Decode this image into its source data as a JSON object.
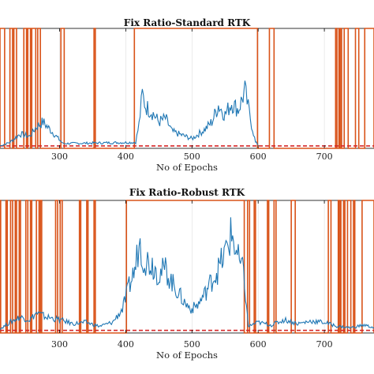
{
  "chart_data": [
    {
      "type": "line",
      "title": "Fix Ratio-Standard RTK",
      "xlabel": "No of Epochs",
      "ylabel": "",
      "xlim": [
        210,
        775
      ],
      "ylim": [
        0,
        1
      ],
      "x_ticks": [
        "300",
        "400",
        "500",
        "600",
        "700"
      ],
      "grid": true,
      "colors": {
        "signal": "#1f77b4",
        "fix": "#d95319",
        "threshold": "#d62728"
      },
      "threshold": 0.02,
      "fix_intervals": [
        [
          210,
          217
        ],
        [
          225,
          229
        ],
        [
          231,
          235
        ],
        [
          246,
          250
        ],
        [
          252,
          256
        ],
        [
          258,
          264
        ],
        [
          267,
          271
        ],
        [
          302,
          307
        ],
        [
          352,
          354
        ],
        [
          413,
          599
        ],
        [
          617,
          624
        ],
        [
          717,
          719
        ],
        [
          722,
          723
        ],
        [
          725,
          726
        ],
        [
          730,
          736
        ],
        [
          747,
          752
        ],
        [
          761,
          775
        ]
      ],
      "series_points": [
        [
          210,
          0.02
        ],
        [
          225,
          0.05
        ],
        [
          240,
          0.12
        ],
        [
          255,
          0.1
        ],
        [
          265,
          0.18
        ],
        [
          275,
          0.22
        ],
        [
          285,
          0.16
        ],
        [
          295,
          0.1
        ],
        [
          305,
          0.04
        ],
        [
          415,
          0.05
        ],
        [
          420,
          0.2
        ],
        [
          425,
          0.45
        ],
        [
          430,
          0.35
        ],
        [
          440,
          0.3
        ],
        [
          450,
          0.22
        ],
        [
          460,
          0.25
        ],
        [
          470,
          0.14
        ],
        [
          480,
          0.12
        ],
        [
          490,
          0.1
        ],
        [
          500,
          0.08
        ],
        [
          510,
          0.12
        ],
        [
          520,
          0.16
        ],
        [
          530,
          0.22
        ],
        [
          540,
          0.36
        ],
        [
          550,
          0.28
        ],
        [
          560,
          0.38
        ],
        [
          570,
          0.32
        ],
        [
          580,
          0.48
        ],
        [
          585,
          0.34
        ],
        [
          590,
          0.2
        ],
        [
          596,
          0.05
        ],
        [
          600,
          0.03
        ]
      ]
    },
    {
      "type": "line",
      "title": "Fix Ratio-Robust RTK",
      "xlabel": "No of Epochs",
      "ylabel": "",
      "xlim": [
        210,
        775
      ],
      "ylim": [
        0,
        1
      ],
      "x_ticks": [
        "300",
        "400",
        "500",
        "600",
        "700"
      ],
      "grid": true,
      "colors": {
        "signal": "#1f77b4",
        "fix": "#d95319",
        "threshold": "#d62728"
      },
      "threshold": 0.02,
      "fix_intervals": [
        [
          210,
          211
        ],
        [
          219,
          221
        ],
        [
          226,
          229
        ],
        [
          233,
          235
        ],
        [
          239,
          241
        ],
        [
          249,
          252
        ],
        [
          256,
          258
        ],
        [
          265,
          269
        ],
        [
          271,
          273
        ],
        [
          294,
          297
        ],
        [
          301,
          304
        ],
        [
          330,
          332
        ],
        [
          341,
          343
        ],
        [
          352,
          354
        ],
        [
          401,
          579
        ],
        [
          584,
          587
        ],
        [
          594,
          596
        ],
        [
          614,
          616
        ],
        [
          624,
          627
        ],
        [
          650,
          656
        ],
        [
          706,
          710
        ],
        [
          721,
          722
        ],
        [
          724,
          725
        ],
        [
          729,
          731
        ],
        [
          735,
          740
        ],
        [
          744,
          746
        ],
        [
          757,
          775
        ]
      ],
      "series_points": [
        [
          210,
          0.03
        ],
        [
          225,
          0.08
        ],
        [
          240,
          0.12
        ],
        [
          255,
          0.1
        ],
        [
          265,
          0.15
        ],
        [
          280,
          0.12
        ],
        [
          300,
          0.1
        ],
        [
          320,
          0.07
        ],
        [
          340,
          0.08
        ],
        [
          360,
          0.05
        ],
        [
          380,
          0.08
        ],
        [
          395,
          0.18
        ],
        [
          405,
          0.35
        ],
        [
          415,
          0.5
        ],
        [
          420,
          0.7
        ],
        [
          425,
          0.6
        ],
        [
          430,
          0.55
        ],
        [
          440,
          0.52
        ],
        [
          450,
          0.45
        ],
        [
          460,
          0.48
        ],
        [
          470,
          0.38
        ],
        [
          480,
          0.3
        ],
        [
          490,
          0.22
        ],
        [
          500,
          0.18
        ],
        [
          510,
          0.22
        ],
        [
          520,
          0.3
        ],
        [
          530,
          0.4
        ],
        [
          540,
          0.48
        ],
        [
          550,
          0.6
        ],
        [
          560,
          0.75
        ],
        [
          570,
          0.55
        ],
        [
          578,
          0.45
        ],
        [
          585,
          0.05
        ],
        [
          600,
          0.08
        ],
        [
          620,
          0.06
        ],
        [
          640,
          0.1
        ],
        [
          660,
          0.07
        ],
        [
          680,
          0.09
        ],
        [
          700,
          0.08
        ],
        [
          720,
          0.05
        ],
        [
          740,
          0.04
        ],
        [
          760,
          0.06
        ],
        [
          775,
          0.04
        ]
      ]
    }
  ]
}
